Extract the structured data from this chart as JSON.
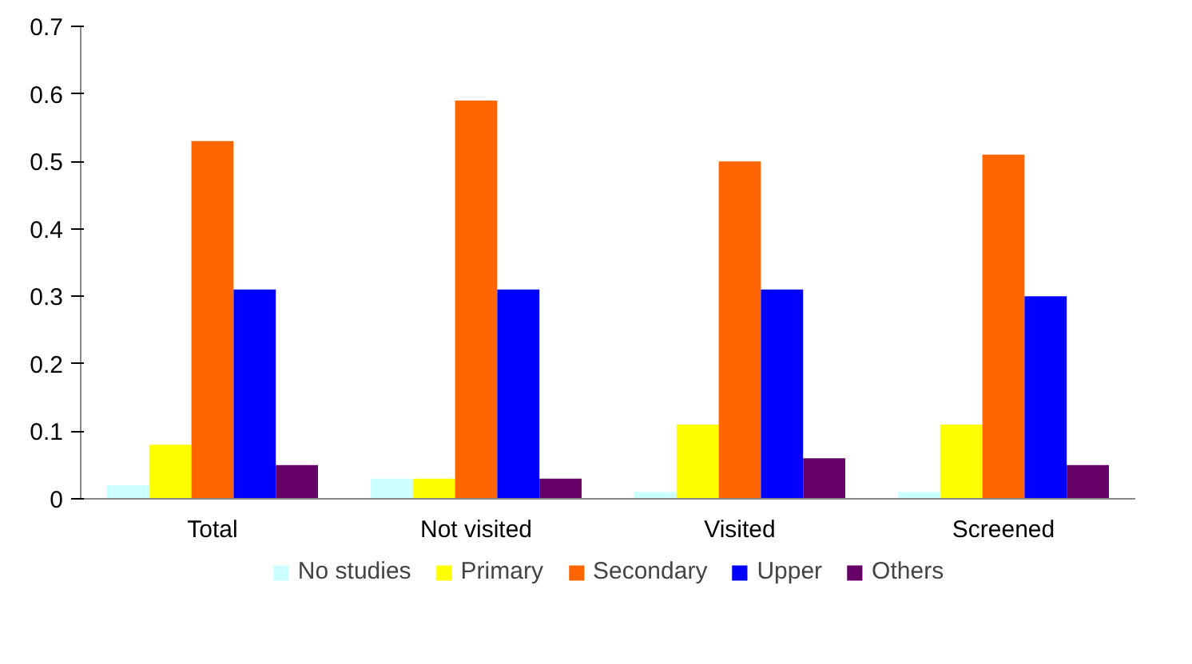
{
  "chart_data": {
    "type": "bar",
    "categories": [
      "Total",
      "Not visited",
      "Visited",
      "Screened"
    ],
    "series": [
      {
        "name": "No studies",
        "color": "#ccffff",
        "values": [
          0.02,
          0.03,
          0.01,
          0.01
        ]
      },
      {
        "name": "Primary",
        "color": "#ffff00",
        "values": [
          0.08,
          0.03,
          0.11,
          0.11
        ]
      },
      {
        "name": "Secondary",
        "color": "#ff6600",
        "values": [
          0.53,
          0.59,
          0.5,
          0.51
        ]
      },
      {
        "name": "Upper",
        "color": "#0000ff",
        "values": [
          0.31,
          0.31,
          0.31,
          0.3
        ]
      },
      {
        "name": "Others",
        "color": "#660066",
        "values": [
          0.05,
          0.03,
          0.06,
          0.05
        ]
      }
    ],
    "ylim": [
      0,
      0.7
    ],
    "yticks": [
      {
        "value": 0,
        "label": "0"
      },
      0.1,
      0.2,
      0.3,
      0.4,
      0.5,
      0.6,
      0.7
    ],
    "grid": false,
    "legend": "bottom"
  }
}
